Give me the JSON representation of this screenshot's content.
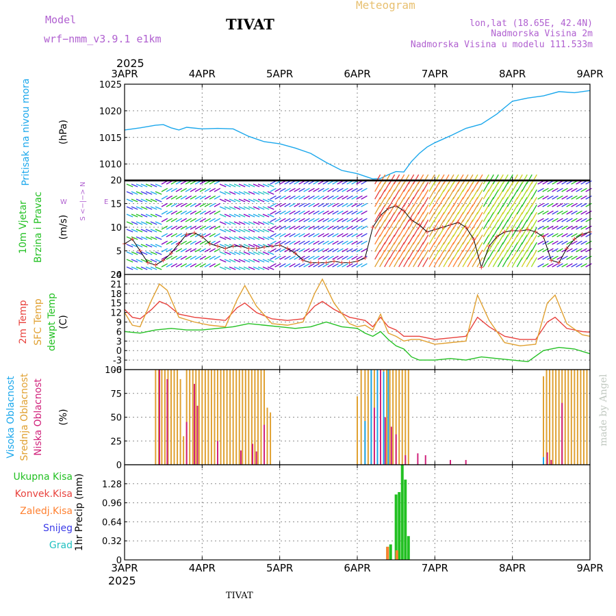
{
  "header": {
    "model_label": "Model",
    "model_name": "wrf−nmm_v3.9.1  e1km",
    "station": "TIVAT",
    "product": "Meteogram",
    "coords": "lon,lat (18.65E, 42.4N)",
    "elevation": "Nadmorska Visina 2m",
    "model_elevation": "Nadmorska Visina u modelu 111.533m",
    "year_top": "2025",
    "year_bottom": "2025",
    "footer_station": "TIVAT",
    "credit": "made by Angel"
  },
  "colors": {
    "pressure": "#1aa7ec",
    "temp2m": "#e8413c",
    "sfc_temp": "#e0a030",
    "dewpoint": "#22c022",
    "high_cloud": "#1aa7ec",
    "mid_cloud": "#e0a030",
    "low_cloud": "#d0207a",
    "total_precip": "#22c022",
    "conv_precip": "#e8413c",
    "frozen_precip": "#ff8030",
    "snow": "#3a3ae8",
    "graupel": "#20c0c0",
    "wind_label": "#22c022",
    "model_text": "#b060d0",
    "product_text": "#e8c070"
  },
  "chart_data": [
    {
      "type": "line",
      "panel": "pressure",
      "ylabel_left": "Pritisak na nivou mora",
      "unit": "(hPa)",
      "ylim": [
        1007,
        1025
      ],
      "yticks": [
        1010,
        1015,
        1020,
        1025
      ],
      "x_days": [
        "3APR",
        "4APR",
        "5APR",
        "6APR",
        "7APR",
        "8APR",
        "9APR"
      ],
      "grid": true,
      "series": [
        {
          "color_key": "pressure",
          "x": [
            0,
            0.2,
            0.4,
            0.5,
            0.6,
            0.7,
            0.8,
            1.0,
            1.2,
            1.4,
            1.6,
            1.8,
            2.0,
            2.2,
            2.4,
            2.6,
            2.8,
            3.0,
            3.1,
            3.2,
            3.3,
            3.4,
            3.5,
            3.6,
            3.7,
            3.8,
            3.9,
            4.0,
            4.2,
            4.4,
            4.6,
            4.8,
            5.0,
            5.2,
            5.4,
            5.6,
            5.8,
            6.0
          ],
          "y": [
            1016.4,
            1016.8,
            1017.3,
            1017.4,
            1016.8,
            1016.4,
            1016.9,
            1016.6,
            1016.7,
            1016.6,
            1015.2,
            1014.2,
            1013.8,
            1013.0,
            1012.0,
            1010.3,
            1008.8,
            1008.2,
            1007.7,
            1007.2,
            1007.3,
            1008.0,
            1008.6,
            1008.5,
            1010.5,
            1012.0,
            1013.2,
            1014.0,
            1015.3,
            1016.7,
            1017.5,
            1019.4,
            1021.8,
            1022.4,
            1022.8,
            1023.6,
            1023.4,
            1023.8
          ]
        }
      ]
    },
    {
      "type": "line",
      "panel": "wind",
      "ylabel_left": [
        "10m Vjetar",
        "Brzina i Pravac"
      ],
      "unit": "(m/s)",
      "compass": {
        "w": "W",
        "e": "E",
        "n": "N",
        "s": "S",
        "text": "<−|−>"
      },
      "ylim": [
        0,
        20
      ],
      "yticks": [
        0,
        5,
        10,
        15,
        20
      ],
      "grid": true,
      "series": [
        {
          "name": "speed",
          "color": "#000000",
          "x": [
            0,
            0.1,
            0.2,
            0.3,
            0.4,
            0.5,
            0.6,
            0.7,
            0.8,
            0.9,
            1.0,
            1.1,
            1.2,
            1.3,
            1.4,
            1.5,
            1.6,
            1.7,
            1.8,
            1.9,
            2.0,
            2.1,
            2.2,
            2.3,
            2.4,
            2.5,
            2.6,
            2.7,
            2.8,
            2.9,
            3.0,
            3.1,
            3.2,
            3.3,
            3.4,
            3.5,
            3.6,
            3.7,
            3.8,
            3.9,
            4.0,
            4.1,
            4.2,
            4.3,
            4.4,
            4.5,
            4.6,
            4.7,
            4.8,
            4.9,
            5.0,
            5.1,
            5.2,
            5.3,
            5.4,
            5.5,
            5.6,
            5.7,
            5.8,
            5.9,
            6.0
          ],
          "y": [
            6.5,
            7.5,
            5.0,
            2.5,
            2.0,
            3.0,
            4.5,
            6.5,
            8.5,
            8.8,
            8.0,
            6.5,
            6.0,
            5.5,
            6.0,
            6.0,
            5.5,
            5.5,
            5.8,
            6.0,
            6.2,
            5.5,
            4.5,
            3.0,
            2.5,
            2.5,
            2.5,
            2.8,
            2.5,
            2.5,
            2.8,
            3.5,
            10.0,
            12.5,
            14.0,
            14.5,
            13.5,
            11.5,
            10.5,
            9.0,
            9.5,
            10.0,
            10.5,
            11.0,
            10.0,
            7.5,
            1.5,
            6.0,
            8.0,
            9.0,
            9.3,
            9.2,
            9.5,
            9.0,
            8.0,
            3.0,
            2.5,
            5.5,
            7.5,
            8.5,
            9.0
          ]
        }
      ]
    },
    {
      "type": "line",
      "panel": "temperature",
      "ylabel_left": [
        "2m Temp",
        "SFC Temp",
        "dewpt Temp"
      ],
      "unit": "(C)",
      "ylim": [
        -6,
        24
      ],
      "yticks": [
        -6,
        -3,
        0,
        3,
        6,
        9,
        12,
        15,
        18,
        21,
        24
      ],
      "grid": true,
      "series": [
        {
          "color_key": "temp2m",
          "x": [
            0,
            0.1,
            0.2,
            0.35,
            0.45,
            0.55,
            0.7,
            0.9,
            1.1,
            1.3,
            1.45,
            1.55,
            1.7,
            1.9,
            2.1,
            2.3,
            2.45,
            2.55,
            2.7,
            2.9,
            3.0,
            3.1,
            3.2,
            3.3,
            3.4,
            3.5,
            3.6,
            3.7,
            3.8,
            4.0,
            4.2,
            4.4,
            4.55,
            4.7,
            4.9,
            5.1,
            5.3,
            5.45,
            5.55,
            5.7,
            5.9,
            6.0
          ],
          "y": [
            13,
            10.5,
            10,
            13,
            15.5,
            14.5,
            11.5,
            10.5,
            10,
            9.5,
            13.5,
            15,
            12,
            10,
            9.5,
            10,
            14,
            15.5,
            13,
            10.5,
            10,
            9.5,
            7.5,
            10.5,
            7.5,
            6.5,
            4.5,
            4.5,
            4.5,
            3.5,
            4.0,
            4.5,
            10.5,
            7.5,
            4.5,
            3.5,
            3.5,
            9.0,
            10.5,
            7.0,
            6.0,
            5.8
          ]
        },
        {
          "color_key": "sfc_temp",
          "x": [
            0,
            0.1,
            0.2,
            0.35,
            0.45,
            0.55,
            0.7,
            0.9,
            1.1,
            1.3,
            1.45,
            1.55,
            1.7,
            1.9,
            2.1,
            2.3,
            2.45,
            2.55,
            2.7,
            2.9,
            3.0,
            3.1,
            3.2,
            3.3,
            3.4,
            3.5,
            3.6,
            3.7,
            3.8,
            4.0,
            4.2,
            4.4,
            4.55,
            4.7,
            4.9,
            5.1,
            5.3,
            5.45,
            5.55,
            5.7,
            5.9,
            6.0
          ],
          "y": [
            12,
            8,
            7.5,
            16,
            21,
            19,
            10.5,
            9,
            8,
            7.5,
            16,
            20.5,
            14,
            8.5,
            8,
            9,
            18,
            22.5,
            15,
            8.5,
            7.5,
            8,
            6.5,
            11.5,
            5.5,
            4.5,
            3.0,
            3.5,
            3.5,
            2.0,
            2.5,
            3.0,
            17.5,
            9.5,
            2.5,
            1.5,
            2.0,
            15.0,
            17.5,
            8.5,
            5.0,
            4.5
          ]
        },
        {
          "color_key": "dewpoint",
          "x": [
            0,
            0.2,
            0.4,
            0.6,
            0.8,
            1.0,
            1.2,
            1.4,
            1.6,
            1.8,
            2.0,
            2.2,
            2.4,
            2.6,
            2.8,
            3.0,
            3.1,
            3.2,
            3.3,
            3.4,
            3.5,
            3.6,
            3.7,
            3.8,
            4.0,
            4.2,
            4.4,
            4.6,
            4.8,
            5.0,
            5.2,
            5.4,
            5.6,
            5.8,
            6.0
          ],
          "y": [
            6,
            5.5,
            6.5,
            7,
            6.5,
            6.5,
            7.0,
            7.5,
            8.5,
            8,
            7.5,
            7.0,
            7.5,
            9,
            7.5,
            7,
            5.5,
            4.5,
            6.0,
            3.5,
            1.5,
            0.5,
            -2.0,
            -3.0,
            -3.0,
            -2.5,
            -3.0,
            -2.0,
            -2.5,
            -3.0,
            -3.5,
            0.0,
            1.0,
            0.5,
            -1.0
          ]
        }
      ]
    },
    {
      "type": "bar",
      "panel": "cloud",
      "ylabel_left": [
        "Visoka Oblacnost",
        "Srednja Oblacnost",
        "Niska Oblacnost"
      ],
      "unit": "(%)",
      "ylim": [
        0,
        100
      ],
      "yticks": [
        0,
        25,
        50,
        75,
        100
      ],
      "grid": true,
      "series": [
        {
          "color_key": "mid_cloud",
          "x": [
            0.4,
            0.44,
            0.48,
            0.52,
            0.56,
            0.6,
            0.64,
            0.68,
            0.72,
            0.76,
            0.8,
            0.84,
            0.88,
            0.92,
            0.96,
            1.0,
            1.04,
            1.08,
            1.12,
            1.16,
            1.2,
            1.24,
            1.28,
            1.32,
            1.36,
            1.4,
            1.44,
            1.48,
            1.52,
            1.56,
            1.6,
            1.64,
            1.68,
            1.72,
            1.76,
            1.8,
            1.84,
            1.88,
            3.0,
            3.05,
            3.1,
            3.14,
            3.18,
            3.22,
            3.26,
            3.3,
            3.34,
            3.38,
            3.42,
            3.46,
            3.5,
            3.54,
            3.58,
            3.62,
            3.66,
            5.4,
            5.44,
            5.48,
            5.52,
            5.56,
            5.6,
            5.64,
            5.68,
            5.72,
            5.76,
            5.8,
            5.84,
            5.88,
            5.92,
            5.96
          ],
          "y": [
            100,
            100,
            100,
            100,
            100,
            100,
            100,
            100,
            90,
            30,
            100,
            100,
            100,
            100,
            100,
            100,
            100,
            100,
            100,
            100,
            100,
            100,
            100,
            100,
            100,
            100,
            100,
            100,
            100,
            100,
            100,
            100,
            100,
            100,
            100,
            100,
            60,
            55,
            72,
            100,
            100,
            100,
            100,
            100,
            100,
            100,
            100,
            100,
            100,
            100,
            100,
            100,
            100,
            100,
            100,
            93,
            100,
            100,
            100,
            100,
            100,
            100,
            100,
            100,
            100,
            100,
            100,
            100,
            100,
            100
          ]
        },
        {
          "color_key": "low_cloud",
          "x": [
            0.45,
            0.55,
            0.8,
            0.9,
            0.94,
            1.2,
            1.5,
            1.65,
            1.7,
            1.8,
            3.22,
            3.3,
            3.36,
            3.44,
            3.5,
            3.62,
            3.78,
            3.88,
            4.2,
            4.4,
            5.45,
            5.5,
            5.64
          ],
          "y": [
            100,
            90,
            45,
            85,
            62,
            25,
            15,
            22,
            14,
            42,
            60,
            100,
            50,
            40,
            32,
            10,
            12,
            10,
            5,
            5,
            13,
            5,
            65
          ]
        },
        {
          "color_key": "high_cloud",
          "x": [
            3.1,
            3.18,
            3.26,
            3.34,
            3.4,
            5.4
          ],
          "y": [
            46,
            100,
            100,
            98,
            100,
            8
          ]
        }
      ]
    },
    {
      "type": "bar",
      "panel": "precip",
      "ylabel_left": "1hr Precip (mm)",
      "legend": [
        "Ukupna Kisa",
        "Konvek.Kisa",
        "Zaledj.Kisa",
        "Snijeg",
        "Grad"
      ],
      "legend_color_keys": [
        "total_precip",
        "conv_precip",
        "frozen_precip",
        "snow",
        "graupel"
      ],
      "ylim": [
        0,
        1.6
      ],
      "yticks": [
        0,
        0.32,
        0.64,
        0.96,
        1.28
      ],
      "x_days": [
        "3APR",
        "4APR",
        "5APR",
        "6APR",
        "7APR",
        "8APR",
        "9APR"
      ],
      "grid": true,
      "series": [
        {
          "color_key": "total_precip",
          "x": [
            3.39,
            3.43,
            3.5,
            3.54,
            3.58,
            3.62,
            3.66
          ],
          "y": [
            0.22,
            0.26,
            1.1,
            1.14,
            1.6,
            1.35,
            0.4
          ]
        },
        {
          "color_key": "frozen_precip",
          "x": [
            3.39,
            3.51
          ],
          "y": [
            0.22,
            0.16
          ]
        }
      ]
    }
  ]
}
